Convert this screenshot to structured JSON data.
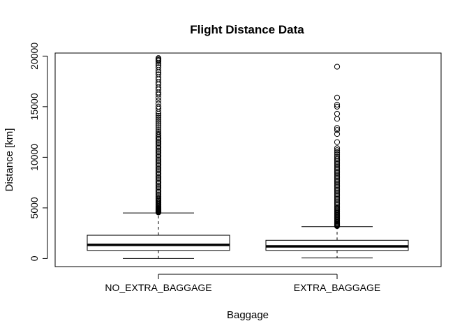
{
  "chart_data": {
    "type": "boxplot",
    "title": "Flight Distance Data",
    "xlabel": "Baggage",
    "ylabel": "Distance [km]",
    "ylim": [
      -800,
      20300
    ],
    "yticks": [
      0,
      5000,
      10000,
      15000,
      20000
    ],
    "grid": false,
    "categories": [
      "NO_EXTRA_BAGGAGE",
      "EXTRA_BAGGAGE"
    ],
    "boxes": [
      {
        "name": "NO_EXTRA_BAGGAGE",
        "min": 0,
        "q1": 800,
        "median": 1350,
        "q3": 2300,
        "whisker_high": 4500,
        "outliers": [
          4550,
          4600,
          4650,
          4700,
          4750,
          4800,
          4850,
          4900,
          4950,
          5000,
          5100,
          5200,
          5300,
          5400,
          5500,
          5600,
          5700,
          5800,
          5900,
          6000,
          6150,
          6300,
          6450,
          6600,
          6750,
          6900,
          7050,
          7200,
          7350,
          7500,
          7650,
          7800,
          7950,
          8100,
          8250,
          8400,
          8550,
          8700,
          8850,
          9000,
          9150,
          9300,
          9450,
          9600,
          9750,
          9900,
          10050,
          10200,
          10350,
          10500,
          10650,
          10800,
          10950,
          11100,
          11250,
          11400,
          11550,
          11700,
          11850,
          12000,
          12150,
          12300,
          12500,
          12700,
          12900,
          13100,
          13300,
          13500,
          13700,
          13900,
          14100,
          14300,
          14500,
          14800,
          15000,
          15300,
          15600,
          15900,
          16200,
          16400,
          16700,
          16900,
          17200,
          17400,
          17700,
          17900,
          18200,
          18400,
          18600,
          18900,
          19100,
          19300,
          19500,
          19600,
          19700,
          19800
        ]
      },
      {
        "name": "EXTRA_BAGGAGE",
        "min": 50,
        "q1": 800,
        "median": 1200,
        "q3": 1800,
        "whisker_high": 3150,
        "outliers": [
          3200,
          3250,
          3300,
          3350,
          3400,
          3450,
          3500,
          3600,
          3700,
          3800,
          3900,
          4000,
          4100,
          4200,
          4300,
          4400,
          4500,
          4600,
          4700,
          4800,
          4900,
          5000,
          5150,
          5300,
          5450,
          5600,
          5750,
          5900,
          6050,
          6200,
          6350,
          6500,
          6650,
          6800,
          6950,
          7100,
          7250,
          7400,
          7550,
          7700,
          7850,
          8000,
          8150,
          8300,
          8450,
          8600,
          8750,
          8900,
          9050,
          9200,
          9350,
          9500,
          9650,
          9800,
          9950,
          10100,
          10300,
          10500,
          10700,
          10900,
          11500,
          12300,
          12700,
          12900,
          13800,
          14300,
          15000,
          15200,
          15900,
          18950
        ]
      }
    ]
  }
}
